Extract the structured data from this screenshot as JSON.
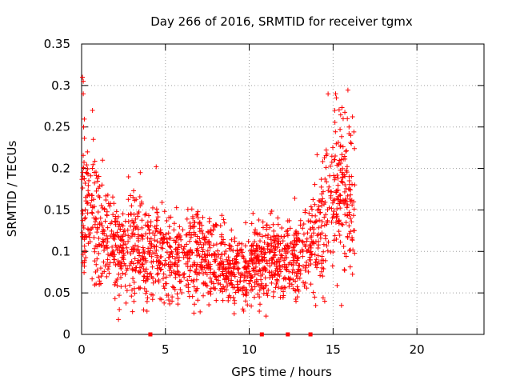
{
  "chart_data": {
    "type": "scatter",
    "title": "Day 266 of 2016, SRMTID for receiver tgmx",
    "xlabel": "GPS time / hours",
    "ylabel": "SRMTID / TECUs",
    "xlim": [
      0,
      24
    ],
    "ylim": [
      0,
      0.35
    ],
    "xticks": [
      0,
      5,
      10,
      15,
      20
    ],
    "xtick_labels": [
      "0",
      "5",
      "10",
      "15",
      "20"
    ],
    "yticks": [
      0,
      0.05,
      0.1,
      0.15,
      0.2,
      0.25,
      0.3,
      0.35
    ],
    "ytick_labels": [
      "0",
      "0.05",
      "0.1",
      "0.15",
      "0.2",
      "0.25",
      "0.3",
      "0.35"
    ],
    "grid": true,
    "marker": "plus",
    "color": "#ff0000",
    "series": [
      {
        "name": "SRMTID",
        "trend": [
          [
            0.0,
            0.16
          ],
          [
            0.5,
            0.15
          ],
          [
            1.0,
            0.13
          ],
          [
            1.5,
            0.12
          ],
          [
            2.0,
            0.11
          ],
          [
            2.5,
            0.1
          ],
          [
            3.0,
            0.11
          ],
          [
            3.5,
            0.105
          ],
          [
            4.0,
            0.1
          ],
          [
            4.5,
            0.1
          ],
          [
            5.0,
            0.095
          ],
          [
            5.5,
            0.09
          ],
          [
            6.0,
            0.09
          ],
          [
            6.5,
            0.095
          ],
          [
            7.0,
            0.1
          ],
          [
            7.5,
            0.09
          ],
          [
            8.0,
            0.09
          ],
          [
            8.5,
            0.08
          ],
          [
            9.0,
            0.075
          ],
          [
            9.5,
            0.075
          ],
          [
            10.0,
            0.08
          ],
          [
            10.5,
            0.09
          ],
          [
            11.0,
            0.09
          ],
          [
            11.5,
            0.1
          ],
          [
            12.0,
            0.09
          ],
          [
            12.5,
            0.095
          ],
          [
            13.0,
            0.1
          ],
          [
            13.5,
            0.1
          ],
          [
            14.0,
            0.12
          ],
          [
            14.5,
            0.15
          ],
          [
            15.0,
            0.17
          ],
          [
            15.5,
            0.17
          ],
          [
            16.0,
            0.16
          ],
          [
            16.3,
            0.16
          ]
        ],
        "extremes": [
          [
            0.05,
            0.31
          ],
          [
            0.1,
            0.305
          ],
          [
            0.1,
            0.29
          ],
          [
            0.12,
            0.25
          ],
          [
            0.35,
            0.22
          ],
          [
            0.65,
            0.27
          ],
          [
            0.7,
            0.235
          ],
          [
            1.25,
            0.21
          ],
          [
            2.2,
            0.018
          ],
          [
            2.25,
            0.03
          ],
          [
            2.8,
            0.19
          ],
          [
            3.5,
            0.195
          ],
          [
            3.9,
            0.028
          ],
          [
            4.45,
            0.202
          ],
          [
            9.1,
            0.025
          ],
          [
            10.6,
            0.028
          ],
          [
            11.0,
            0.022
          ],
          [
            13.9,
            0.045
          ],
          [
            14.5,
            0.04
          ],
          [
            15.5,
            0.035
          ],
          [
            15.15,
            0.29
          ],
          [
            15.2,
            0.285
          ],
          [
            15.1,
            0.27
          ],
          [
            15.6,
            0.26
          ],
          [
            15.85,
            0.26
          ],
          [
            16.05,
            0.24
          ],
          [
            15.95,
            0.25
          ]
        ]
      }
    ],
    "bottom_markers_x": [
      4.1,
      10.75,
      12.3,
      13.65
    ]
  }
}
